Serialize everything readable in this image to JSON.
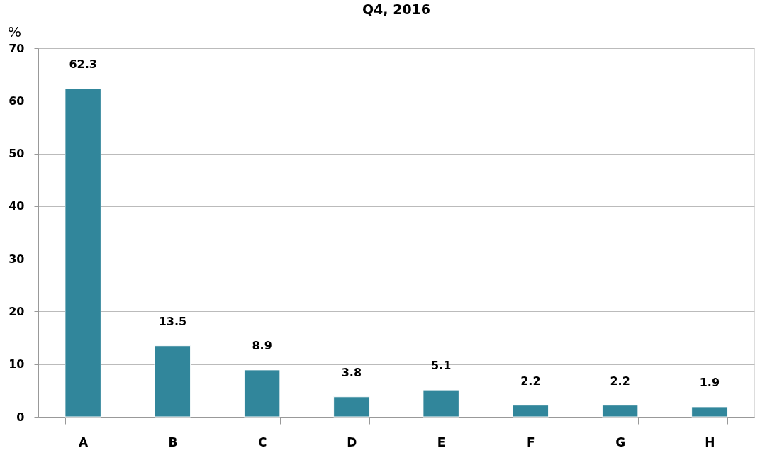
{
  "chart_data": {
    "type": "bar",
    "title": "Q4, 2016",
    "ylabel": "%",
    "categories": [
      "A",
      "B",
      "C",
      "D",
      "E",
      "F",
      "G",
      "H"
    ],
    "values": [
      62.3,
      13.5,
      8.9,
      3.8,
      5.1,
      2.2,
      2.2,
      1.9
    ],
    "color": "#31869b",
    "ylim": [
      0,
      70
    ],
    "yticks": [
      0,
      10,
      20,
      30,
      40,
      50,
      60,
      70
    ],
    "grid": "y",
    "data_labels": true
  }
}
